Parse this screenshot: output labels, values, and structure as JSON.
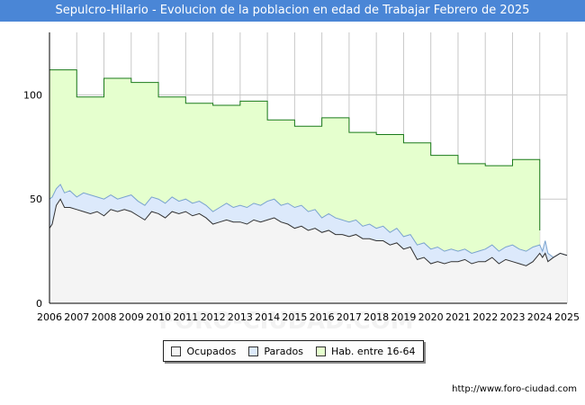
{
  "header": {
    "title": "Sepulcro-Hilario - Evolucion de la poblacion en edad de Trabajar Febrero de 2025"
  },
  "footer": {
    "source": "http://www.foro-ciudad.com",
    "watermark": "FORO-CIUDAD.COM"
  },
  "colors": {
    "title_bg": "#4a86d6",
    "ocupados": "#f4f4f4",
    "parados": "#dce9fb",
    "hab": "#e5ffce",
    "hab_line": "#1a7a1a",
    "grid": "#c8c8c8"
  },
  "chart_data": {
    "type": "area",
    "title": "Sepulcro-Hilario - Evolucion de la poblacion en edad de Trabajar Febrero de 2025",
    "xlabel": "",
    "ylabel": "",
    "xlim": [
      2006,
      2025
    ],
    "ylim": [
      0,
      130
    ],
    "y_ticks": [
      0,
      50,
      100
    ],
    "x_ticks": [
      "2006",
      "2007",
      "2008",
      "2009",
      "2010",
      "2011",
      "2012",
      "2013",
      "2014",
      "2015",
      "2016",
      "2017",
      "2018",
      "2019",
      "2020",
      "2021",
      "2022",
      "2023",
      "2024",
      "2025"
    ],
    "legend_position": "bottom",
    "series": [
      {
        "name": "Hab. entre 16-64",
        "style": "step",
        "points": [
          [
            2006,
            112
          ],
          [
            2007,
            99
          ],
          [
            2008,
            108
          ],
          [
            2009,
            106
          ],
          [
            2010,
            99
          ],
          [
            2011,
            96
          ],
          [
            2012,
            95
          ],
          [
            2013,
            97
          ],
          [
            2014,
            88
          ],
          [
            2015,
            85
          ],
          [
            2016,
            89
          ],
          [
            2017,
            82
          ],
          [
            2018,
            81
          ],
          [
            2019,
            77
          ],
          [
            2020,
            71
          ],
          [
            2021,
            67
          ],
          [
            2022,
            66
          ],
          [
            2023,
            69
          ],
          [
            2024,
            69
          ]
        ]
      },
      {
        "name": "Parados",
        "style": "line",
        "points": [
          [
            2006.0,
            50
          ],
          [
            2006.1,
            51
          ],
          [
            2006.25,
            55
          ],
          [
            2006.4,
            57
          ],
          [
            2006.55,
            53
          ],
          [
            2006.75,
            54
          ],
          [
            2007.0,
            51
          ],
          [
            2007.25,
            53
          ],
          [
            2007.5,
            52
          ],
          [
            2007.75,
            51
          ],
          [
            2008.0,
            50
          ],
          [
            2008.25,
            52
          ],
          [
            2008.5,
            50
          ],
          [
            2008.75,
            51
          ],
          [
            2009.0,
            52
          ],
          [
            2009.25,
            49
          ],
          [
            2009.5,
            47
          ],
          [
            2009.75,
            51
          ],
          [
            2010.0,
            50
          ],
          [
            2010.25,
            48
          ],
          [
            2010.5,
            51
          ],
          [
            2010.75,
            49
          ],
          [
            2011.0,
            50
          ],
          [
            2011.25,
            48
          ],
          [
            2011.5,
            49
          ],
          [
            2011.75,
            47
          ],
          [
            2012.0,
            44
          ],
          [
            2012.25,
            46
          ],
          [
            2012.5,
            48
          ],
          [
            2012.75,
            46
          ],
          [
            2013.0,
            47
          ],
          [
            2013.25,
            46
          ],
          [
            2013.5,
            48
          ],
          [
            2013.75,
            47
          ],
          [
            2014.0,
            49
          ],
          [
            2014.25,
            50
          ],
          [
            2014.5,
            47
          ],
          [
            2014.75,
            48
          ],
          [
            2015.0,
            46
          ],
          [
            2015.25,
            47
          ],
          [
            2015.5,
            44
          ],
          [
            2015.75,
            45
          ],
          [
            2016.0,
            41
          ],
          [
            2016.25,
            43
          ],
          [
            2016.5,
            41
          ],
          [
            2016.75,
            40
          ],
          [
            2017.0,
            39
          ],
          [
            2017.25,
            40
          ],
          [
            2017.5,
            37
          ],
          [
            2017.75,
            38
          ],
          [
            2018.0,
            36
          ],
          [
            2018.25,
            37
          ],
          [
            2018.5,
            34
          ],
          [
            2018.75,
            36
          ],
          [
            2019.0,
            32
          ],
          [
            2019.25,
            33
          ],
          [
            2019.5,
            28
          ],
          [
            2019.75,
            29
          ],
          [
            2020.0,
            26
          ],
          [
            2020.25,
            27
          ],
          [
            2020.5,
            25
          ],
          [
            2020.75,
            26
          ],
          [
            2021.0,
            25
          ],
          [
            2021.25,
            26
          ],
          [
            2021.5,
            24
          ],
          [
            2021.75,
            25
          ],
          [
            2022.0,
            26
          ],
          [
            2022.25,
            28
          ],
          [
            2022.5,
            25
          ],
          [
            2022.75,
            27
          ],
          [
            2023.0,
            28
          ],
          [
            2023.25,
            26
          ],
          [
            2023.5,
            25
          ],
          [
            2023.75,
            27
          ],
          [
            2024.0,
            28
          ],
          [
            2024.1,
            25
          ],
          [
            2024.2,
            30
          ],
          [
            2024.3,
            24
          ],
          [
            2024.5,
            22
          ],
          [
            2024.75,
            24
          ],
          [
            2025.0,
            23
          ]
        ]
      },
      {
        "name": "Ocupados",
        "style": "line",
        "points": [
          [
            2006.0,
            36
          ],
          [
            2006.1,
            38
          ],
          [
            2006.25,
            47
          ],
          [
            2006.4,
            50
          ],
          [
            2006.55,
            46
          ],
          [
            2006.75,
            46
          ],
          [
            2007.0,
            45
          ],
          [
            2007.25,
            44
          ],
          [
            2007.5,
            43
          ],
          [
            2007.75,
            44
          ],
          [
            2008.0,
            42
          ],
          [
            2008.25,
            45
          ],
          [
            2008.5,
            44
          ],
          [
            2008.75,
            45
          ],
          [
            2009.0,
            44
          ],
          [
            2009.25,
            42
          ],
          [
            2009.5,
            40
          ],
          [
            2009.75,
            44
          ],
          [
            2010.0,
            43
          ],
          [
            2010.25,
            41
          ],
          [
            2010.5,
            44
          ],
          [
            2010.75,
            43
          ],
          [
            2011.0,
            44
          ],
          [
            2011.25,
            42
          ],
          [
            2011.5,
            43
          ],
          [
            2011.75,
            41
          ],
          [
            2012.0,
            38
          ],
          [
            2012.25,
            39
          ],
          [
            2012.5,
            40
          ],
          [
            2012.75,
            39
          ],
          [
            2013.0,
            39
          ],
          [
            2013.25,
            38
          ],
          [
            2013.5,
            40
          ],
          [
            2013.75,
            39
          ],
          [
            2014.0,
            40
          ],
          [
            2014.25,
            41
          ],
          [
            2014.5,
            39
          ],
          [
            2014.75,
            38
          ],
          [
            2015.0,
            36
          ],
          [
            2015.25,
            37
          ],
          [
            2015.5,
            35
          ],
          [
            2015.75,
            36
          ],
          [
            2016.0,
            34
          ],
          [
            2016.25,
            35
          ],
          [
            2016.5,
            33
          ],
          [
            2016.75,
            33
          ],
          [
            2017.0,
            32
          ],
          [
            2017.25,
            33
          ],
          [
            2017.5,
            31
          ],
          [
            2017.75,
            31
          ],
          [
            2018.0,
            30
          ],
          [
            2018.25,
            30
          ],
          [
            2018.5,
            28
          ],
          [
            2018.75,
            29
          ],
          [
            2019.0,
            26
          ],
          [
            2019.25,
            27
          ],
          [
            2019.5,
            21
          ],
          [
            2019.75,
            22
          ],
          [
            2020.0,
            19
          ],
          [
            2020.25,
            20
          ],
          [
            2020.5,
            19
          ],
          [
            2020.75,
            20
          ],
          [
            2021.0,
            20
          ],
          [
            2021.25,
            21
          ],
          [
            2021.5,
            19
          ],
          [
            2021.75,
            20
          ],
          [
            2022.0,
            20
          ],
          [
            2022.25,
            22
          ],
          [
            2022.5,
            19
          ],
          [
            2022.75,
            21
          ],
          [
            2023.0,
            20
          ],
          [
            2023.25,
            19
          ],
          [
            2023.5,
            18
          ],
          [
            2023.75,
            20
          ],
          [
            2024.0,
            24
          ],
          [
            2024.1,
            22
          ],
          [
            2024.2,
            24
          ],
          [
            2024.3,
            20
          ],
          [
            2024.5,
            22
          ],
          [
            2024.75,
            24
          ],
          [
            2025.0,
            23
          ]
        ]
      }
    ],
    "legend": [
      "Ocupados",
      "Parados",
      "Hab. entre 16-64"
    ]
  }
}
